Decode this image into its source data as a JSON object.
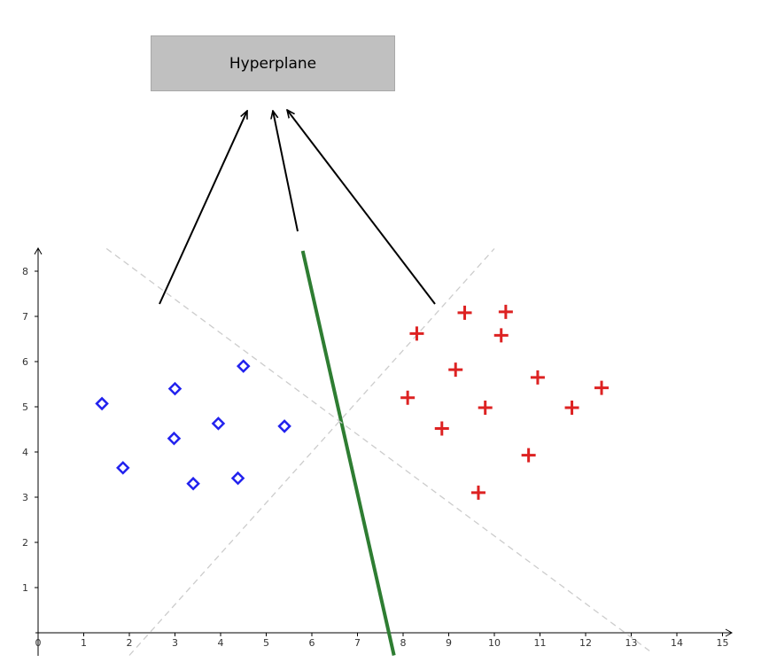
{
  "annotation": {
    "label": "Hyperplane"
  },
  "chart_data": {
    "type": "scatter",
    "title": "",
    "xlabel": "",
    "ylabel": "",
    "xlim": [
      0,
      15.2
    ],
    "ylim": [
      -0.5,
      8.7
    ],
    "x_ticks": [
      0,
      1,
      2,
      3,
      4,
      5,
      6,
      7,
      8,
      9,
      10,
      11,
      12,
      13,
      14,
      15
    ],
    "y_ticks": [
      1,
      2,
      3,
      4,
      5,
      6,
      7,
      8
    ],
    "grid": false,
    "series": [
      {
        "marker": "diamond",
        "color": "#2222ee",
        "points": [
          [
            1.4,
            5.07
          ],
          [
            1.86,
            3.65
          ],
          [
            2.98,
            4.3
          ],
          [
            3.0,
            5.4
          ],
          [
            3.4,
            3.3
          ],
          [
            3.95,
            4.63
          ],
          [
            4.38,
            3.42
          ],
          [
            4.5,
            5.9
          ],
          [
            5.4,
            4.57
          ]
        ]
      },
      {
        "marker": "plus",
        "color": "#dd2222",
        "points": [
          [
            8.1,
            5.2
          ],
          [
            8.3,
            6.62
          ],
          [
            8.85,
            4.52
          ],
          [
            9.15,
            5.82
          ],
          [
            9.35,
            7.08
          ],
          [
            9.65,
            3.1
          ],
          [
            9.8,
            4.98
          ],
          [
            10.15,
            6.58
          ],
          [
            10.25,
            7.1
          ],
          [
            10.75,
            3.93
          ],
          [
            10.95,
            5.65
          ],
          [
            11.7,
            4.98
          ],
          [
            12.35,
            5.42
          ]
        ]
      }
    ],
    "lines": [
      {
        "role": "hyperplane",
        "color": "#2e7d32",
        "from": [
          5.8,
          8.45
        ],
        "to": [
          7.8,
          -0.5
        ]
      },
      {
        "role": "margin",
        "color": "#cccccc",
        "dashed": true,
        "from": [
          1.5,
          8.5
        ],
        "to": [
          13.4,
          -0.4
        ]
      },
      {
        "role": "margin",
        "color": "#cccccc",
        "dashed": true,
        "from": [
          2.0,
          -0.5
        ],
        "to": [
          10.0,
          8.5
        ]
      }
    ]
  }
}
